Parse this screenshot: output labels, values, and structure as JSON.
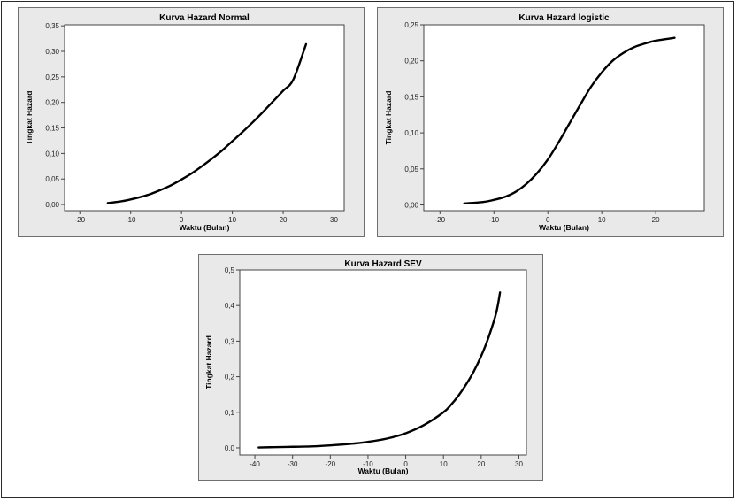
{
  "chart_data": [
    {
      "type": "line",
      "title": "Kurva Hazard Normal",
      "xlabel": "Waktu (Bulan)",
      "ylabel": "Tingkat Hazard",
      "xlim": [
        -23,
        32
      ],
      "ylim": [
        -0.012,
        0.352
      ],
      "xticks": [
        -20,
        -10,
        0,
        10,
        20,
        30
      ],
      "xtick_labels": [
        "-20",
        "-10",
        "0",
        "10",
        "20",
        "30"
      ],
      "yticks": [
        0,
        0.05,
        0.1,
        0.15,
        0.2,
        0.25,
        0.3,
        0.35
      ],
      "ytick_labels": [
        "0,00",
        "0,05",
        "0,10",
        "0,15",
        "0,20",
        "0,25",
        "0,30",
        "0,35"
      ],
      "grid": false,
      "series": [
        {
          "x": [
            -14.5,
            -12,
            -10,
            -8,
            -6,
            -4,
            -2,
            0,
            2,
            4,
            6,
            8,
            10,
            12,
            14,
            16,
            18,
            20,
            22,
            24.5
          ],
          "values": [
            0.003,
            0.006,
            0.01,
            0.015,
            0.021,
            0.029,
            0.038,
            0.049,
            0.061,
            0.075,
            0.09,
            0.106,
            0.124,
            0.142,
            0.161,
            0.181,
            0.202,
            0.223,
            0.245,
            0.314
          ]
        }
      ]
    },
    {
      "type": "line",
      "title": "Kurva Hazard logistic",
      "xlabel": "Waktu (Bulan)",
      "ylabel": "Tingkat Hazard",
      "xlim": [
        -23,
        29
      ],
      "ylim": [
        -0.008,
        0.25
      ],
      "xticks": [
        -20,
        -10,
        0,
        10,
        20
      ],
      "xtick_labels": [
        "-20",
        "-10",
        "0",
        "10",
        "20"
      ],
      "yticks": [
        0,
        0.05,
        0.1,
        0.15,
        0.2,
        0.25
      ],
      "ytick_labels": [
        "0,00",
        "0,05",
        "0,10",
        "0,15",
        "0,20",
        "0,25"
      ],
      "grid": false,
      "series": [
        {
          "x": [
            -15.5,
            -12,
            -10,
            -8,
            -6,
            -4,
            -2,
            0,
            2,
            4,
            6,
            8,
            10,
            12,
            14,
            16,
            18,
            20,
            23.5
          ],
          "values": [
            0.002,
            0.004,
            0.007,
            0.011,
            0.018,
            0.029,
            0.044,
            0.063,
            0.087,
            0.113,
            0.139,
            0.164,
            0.184,
            0.2,
            0.211,
            0.219,
            0.224,
            0.228,
            0.232
          ]
        }
      ]
    },
    {
      "type": "line",
      "title": "Kurva Hazard SEV",
      "xlabel": "Waktu (Bulan)",
      "ylabel": "Tingkat Hazard",
      "xlim": [
        -44,
        32
      ],
      "ylim": [
        -0.02,
        0.5
      ],
      "xticks": [
        -40,
        -30,
        -20,
        -10,
        0,
        10,
        20,
        30
      ],
      "xtick_labels": [
        "-40",
        "-30",
        "-20",
        "-10",
        "0",
        "10",
        "20",
        "30"
      ],
      "yticks": [
        0,
        0.1,
        0.2,
        0.3,
        0.4,
        0.5
      ],
      "ytick_labels": [
        "0,0",
        "0,1",
        "0,2",
        "0,3",
        "0,4",
        "0,5"
      ],
      "grid": false,
      "series": [
        {
          "x": [
            -39,
            -35,
            -30,
            -25,
            -20,
            -15,
            -10,
            -5,
            0,
            5,
            10,
            12,
            14,
            16,
            18,
            20,
            22,
            24,
            25
          ],
          "values": [
            0.001,
            0.002,
            0.003,
            0.004,
            0.007,
            0.011,
            0.017,
            0.026,
            0.041,
            0.065,
            0.1,
            0.121,
            0.147,
            0.178,
            0.214,
            0.258,
            0.312,
            0.38,
            0.437
          ]
        }
      ]
    }
  ]
}
